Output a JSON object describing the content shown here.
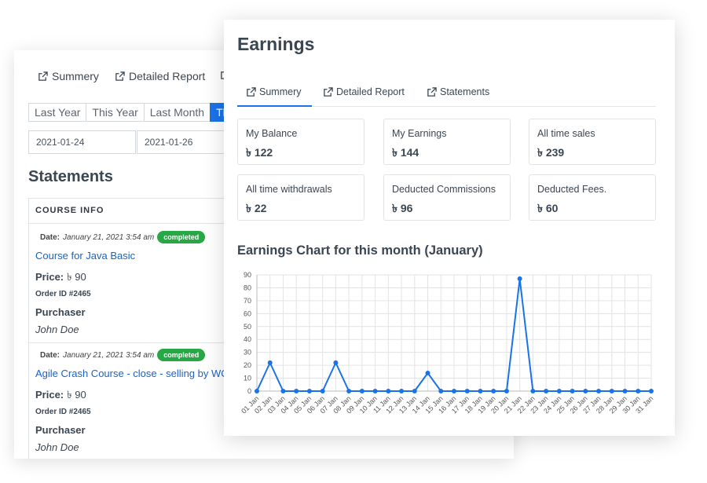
{
  "back": {
    "tabs": [
      "Summery",
      "Detailed Report"
    ],
    "periods": [
      "Last Year",
      "This Year",
      "Last Month",
      "Th"
    ],
    "date_from": "2021-01-24",
    "date_to": "2021-01-26",
    "title": "Statements",
    "course_info_header": "COURSE INFO",
    "statements": [
      {
        "date_label": "Date:",
        "date": "January 21, 2021 3:54 am",
        "status": "completed",
        "course": "Course for Java Basic",
        "price_label": "Price:",
        "price": "৳ 90",
        "order": "Order ID #2465",
        "purchaser_label": "Purchaser",
        "purchaser": "John Doe"
      },
      {
        "date_label": "Date:",
        "date": "January 21, 2021 3:54 am",
        "status": "completed",
        "course": "Agile Crash Course - close - selling by WC",
        "price_label": "Price:",
        "price": "৳ 90",
        "order": "Order ID #2465",
        "purchaser_label": "Purchaser",
        "purchaser": "John Doe"
      }
    ]
  },
  "front": {
    "title": "Earnings",
    "tabs": [
      "Summery",
      "Detailed Report",
      "Statements"
    ],
    "stats": [
      {
        "label": "My Balance",
        "value": "৳ 122"
      },
      {
        "label": "My Earnings",
        "value": "৳ 144"
      },
      {
        "label": "All time sales",
        "value": "৳ 239"
      },
      {
        "label": "All time withdrawals",
        "value": "৳ 22"
      },
      {
        "label": "Deducted Commissions",
        "value": "৳ 96"
      },
      {
        "label": "Deducted Fees.",
        "value": "৳ 60"
      }
    ],
    "chart_title": "Earnings Chart for this month (January)"
  },
  "colors": {
    "accent": "#1a73e8",
    "badge": "#28a745",
    "link": "#1a63c5",
    "text": "#3a4651"
  },
  "icons": {
    "tab": "external-link-icon"
  },
  "chart_data": {
    "type": "line",
    "title": "Earnings Chart for this month (January)",
    "xlabel": "",
    "ylabel": "",
    "ylim": [
      0,
      90
    ],
    "yticks": [
      0,
      10,
      20,
      30,
      40,
      50,
      60,
      70,
      80,
      90
    ],
    "grid": true,
    "categories": [
      "01 Jan",
      "02 Jan",
      "03 Jan",
      "04 Jan",
      "05 Jan",
      "06 Jan",
      "07 Jan",
      "08 Jan",
      "09 Jan",
      "10 Jan",
      "11 Jan",
      "12 Jan",
      "13 Jan",
      "14 Jan",
      "15 Jan",
      "16 Jan",
      "17 Jan",
      "18 Jan",
      "19 Jan",
      "20 Jan",
      "21 Jan",
      "22 Jan",
      "23 Jan",
      "24 Jan",
      "25 Jan",
      "26 Jan",
      "27 Jan",
      "28 Jan",
      "29 Jan",
      "30 Jan",
      "31 Jan"
    ],
    "values": [
      0,
      22,
      0,
      0,
      0,
      0,
      22,
      0,
      0,
      0,
      0,
      0,
      0,
      14,
      0,
      0,
      0,
      0,
      0,
      0,
      87,
      0,
      0,
      0,
      0,
      0,
      0,
      0,
      0,
      0,
      0
    ],
    "line_color": "#1a73e8"
  }
}
